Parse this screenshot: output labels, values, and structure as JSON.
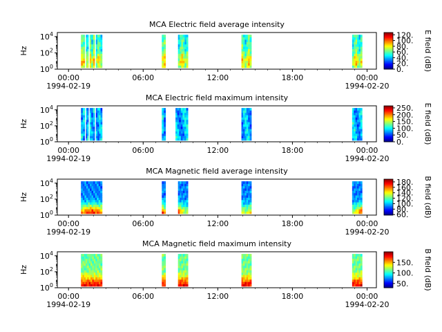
{
  "chart_data": [
    {
      "type": "heatmap",
      "title": "MCA  Electric field average intensity",
      "ylabel": "Hz",
      "yticks": [
        "10^0",
        "10^2",
        "10^4"
      ],
      "xticks": [
        "00:00",
        "06:00",
        "12:00",
        "18:00",
        "00:00"
      ],
      "xdates": [
        "1994-02-19",
        "",
        "",
        "",
        "1994-02-20"
      ],
      "colorbar": {
        "label": "E field (dB)",
        "ticks": [
          "0.",
          "20.",
          "40.",
          "60.",
          "80.",
          "100.",
          "120."
        ],
        "range": [
          0,
          128
        ]
      },
      "style": "e_avg",
      "segments": [
        [
          1.0,
          1.3
        ],
        [
          1.4,
          1.6
        ],
        [
          1.7,
          2.1
        ],
        [
          2.2,
          2.7
        ],
        [
          7.5,
          7.8
        ],
        [
          8.8,
          9.6
        ],
        [
          13.9,
          14.7
        ],
        [
          22.8,
          23.6
        ]
      ]
    },
    {
      "type": "heatmap",
      "title": "MCA  Electric field maximum intensity",
      "ylabel": "Hz",
      "yticks": [
        "10^0",
        "10^2",
        "10^4"
      ],
      "xticks": [
        "00:00",
        "06:00",
        "12:00",
        "18:00",
        "00:00"
      ],
      "xdates": [
        "1994-02-19",
        "",
        "",
        "",
        "1994-02-20"
      ],
      "colorbar": {
        "label": "E field (dB)",
        "ticks": [
          "0.",
          "50.",
          "100.",
          "150.",
          "200.",
          "250."
        ],
        "range": [
          0,
          265
        ]
      },
      "style": "e_max",
      "segments": [
        [
          1.0,
          1.3
        ],
        [
          1.4,
          1.6
        ],
        [
          1.7,
          2.1
        ],
        [
          2.2,
          2.7
        ],
        [
          7.5,
          7.8
        ],
        [
          8.6,
          9.6
        ],
        [
          13.9,
          14.7
        ],
        [
          22.8,
          23.6
        ]
      ]
    },
    {
      "type": "heatmap",
      "title": "MCA  Magnetic field average intensity",
      "ylabel": "Hz",
      "yticks": [
        "10^0",
        "10^2",
        "10^4"
      ],
      "xticks": [
        "00:00",
        "06:00",
        "12:00",
        "18:00",
        "00:00"
      ],
      "xdates": [
        "1994-02-19",
        "",
        "",
        "",
        "1994-02-20"
      ],
      "colorbar": {
        "label": "B field (dB)",
        "ticks": [
          "60.",
          "80.",
          "100.",
          "120.",
          "140.",
          "160.",
          "180."
        ],
        "range": [
          58,
          190
        ]
      },
      "style": "b_avg",
      "segments": [
        [
          1.0,
          2.7
        ],
        [
          7.5,
          7.8
        ],
        [
          8.8,
          9.6
        ],
        [
          13.9,
          14.7
        ],
        [
          22.8,
          23.6
        ]
      ]
    },
    {
      "type": "heatmap",
      "title": "MCA  Magnetic field maximum intensity",
      "ylabel": "Hz",
      "yticks": [
        "10^0",
        "10^2",
        "10^4"
      ],
      "xticks": [
        "00:00",
        "06:00",
        "12:00",
        "18:00",
        "00:00"
      ],
      "xdates": [
        "1994-02-19",
        "",
        "",
        "",
        "1994-02-20"
      ],
      "colorbar": {
        "label": "B field (dB)",
        "ticks": [
          "50.",
          "100.",
          "150."
        ],
        "range": [
          30,
          200
        ]
      },
      "style": "b_max",
      "segments": [
        [
          1.0,
          1.5
        ],
        [
          1.5,
          2.7
        ],
        [
          7.5,
          7.8
        ],
        [
          8.8,
          9.6
        ],
        [
          13.9,
          14.7
        ],
        [
          22.8,
          23.6
        ]
      ]
    }
  ]
}
